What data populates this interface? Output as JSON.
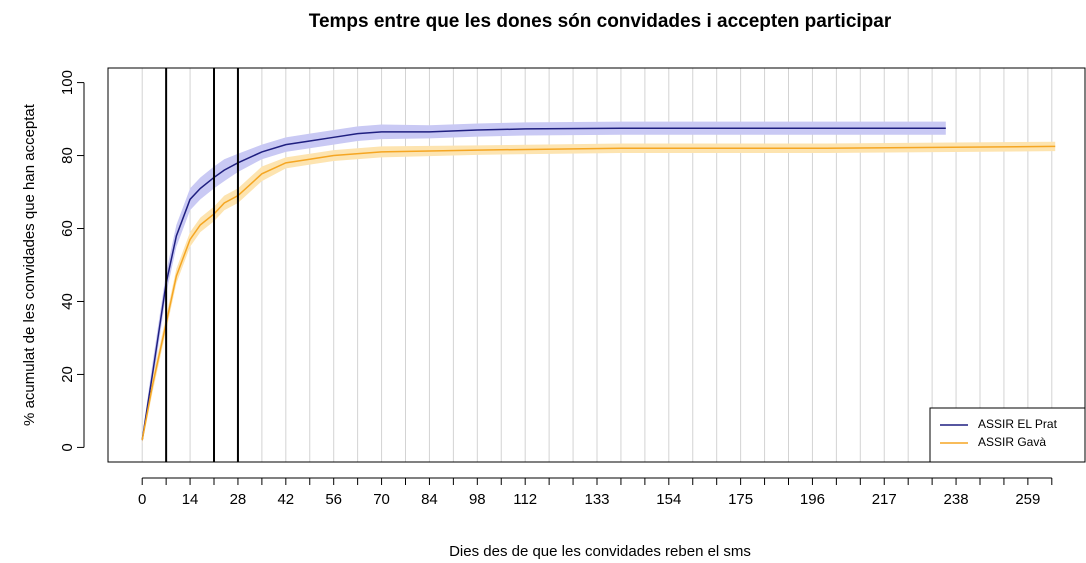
{
  "chart_data": {
    "type": "line",
    "title": "Temps entre que les dones són convidades i accepten participar",
    "xlabel": "Dies des de que les convidades reben el sms",
    "ylabel": "% acumulat de les convidades que han acceptat",
    "xlim": [
      -10,
      276
    ],
    "ylim": [
      -4,
      104
    ],
    "xticks": [
      0,
      14,
      28,
      42,
      56,
      70,
      84,
      98,
      112,
      133,
      154,
      175,
      196,
      217,
      238,
      259
    ],
    "xgrid": [
      0,
      7,
      14,
      21,
      28,
      35,
      42,
      49,
      56,
      63,
      70,
      77,
      84,
      91,
      98,
      105,
      112,
      119,
      126,
      133,
      140,
      147,
      154,
      161,
      168,
      175,
      182,
      189,
      196,
      203,
      210,
      217,
      224,
      231,
      238,
      245,
      252,
      259,
      266
    ],
    "yticks": [
      0,
      20,
      40,
      60,
      80,
      100
    ],
    "vlines": [
      7,
      21,
      28
    ],
    "legend": "bottom-right",
    "series": [
      {
        "name": "ASSIR EL Prat",
        "color": "#1f1f80",
        "band_color": "#c9c9f4",
        "x": [
          0,
          3,
          7,
          10,
          14,
          17,
          21,
          24,
          28,
          35,
          42,
          49,
          56,
          63,
          70,
          84,
          98,
          112,
          140,
          175,
          196,
          217,
          235
        ],
        "values": [
          2,
          20,
          45,
          58,
          68,
          71,
          74,
          76,
          78,
          81,
          83,
          84,
          85,
          86,
          86.5,
          86.5,
          87,
          87.3,
          87.5,
          87.5,
          87.5,
          87.5,
          87.5
        ],
        "lower": [
          1,
          17,
          42,
          55,
          65,
          68,
          71,
          73,
          75.5,
          79,
          81,
          82,
          83,
          84,
          84.5,
          84.7,
          85.2,
          85.5,
          85.7,
          85.7,
          85.7,
          85.7,
          85.7
        ],
        "upper": [
          3,
          23,
          48,
          61,
          71,
          74,
          77,
          79,
          80.5,
          83,
          85,
          86,
          87,
          88,
          88.5,
          88.3,
          88.8,
          89.1,
          89.3,
          89.3,
          89.3,
          89.3,
          89.3
        ]
      },
      {
        "name": "ASSIR Gavà",
        "color": "#f5a623",
        "band_color": "#fde4b0",
        "x": [
          0,
          3,
          7,
          10,
          14,
          17,
          21,
          24,
          28,
          35,
          42,
          49,
          56,
          70,
          98,
          140,
          200,
          267
        ],
        "values": [
          2,
          17,
          34,
          47,
          57,
          61,
          64,
          67,
          69,
          75,
          78,
          79,
          80,
          81,
          81.5,
          82,
          82,
          82.5
        ],
        "lower": [
          1,
          15,
          32,
          45,
          55,
          59,
          62,
          65,
          67,
          73,
          76.5,
          77.5,
          78.5,
          79.5,
          80.2,
          80.7,
          80.7,
          81.2
        ],
        "upper": [
          3,
          19,
          36,
          49,
          59,
          63,
          66,
          69,
          71,
          77,
          79.5,
          80.5,
          81.5,
          82.5,
          82.8,
          83.3,
          83.3,
          83.8
        ]
      }
    ]
  }
}
